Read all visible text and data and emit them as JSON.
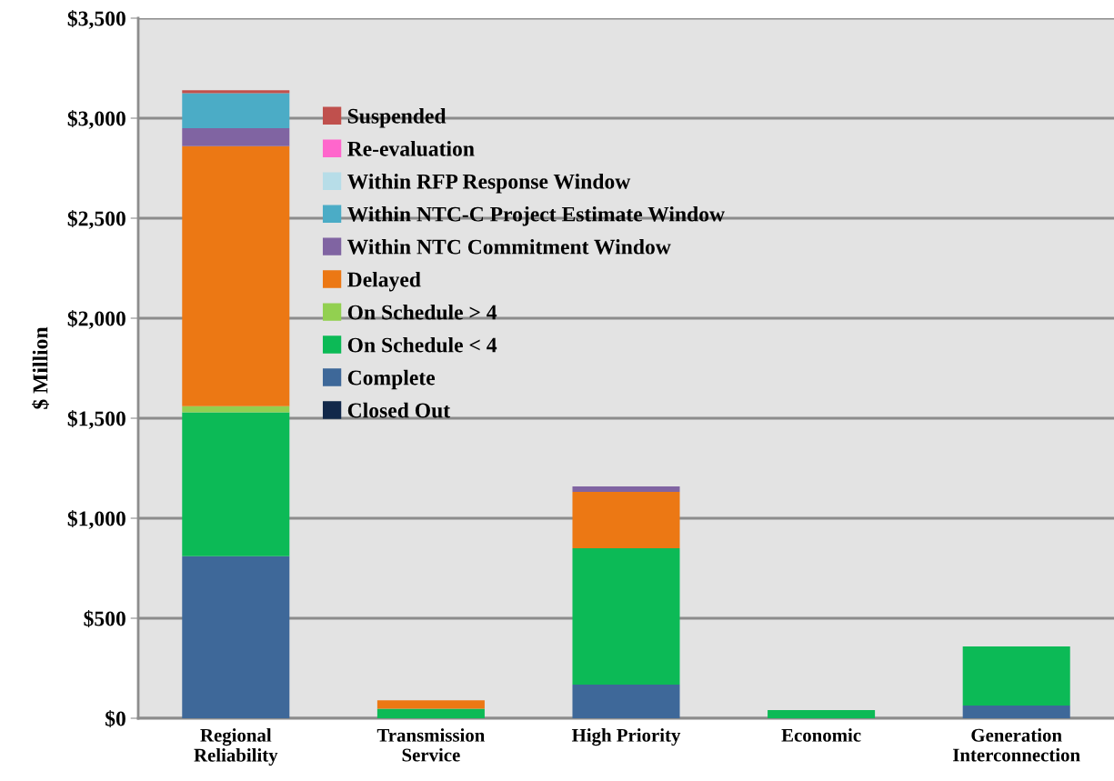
{
  "chart_data": {
    "type": "bar",
    "stacked": true,
    "ylabel": "$ Million",
    "categories": [
      "Regional\nReliability",
      "Transmission\nService",
      "High Priority",
      "Economic",
      "Generation\nInterconnection"
    ],
    "series": [
      {
        "name": "Closed Out",
        "color": "#12284a",
        "values": [
          0,
          0,
          0,
          0,
          0
        ]
      },
      {
        "name": "Complete",
        "color": "#3e6899",
        "values": [
          810,
          0,
          168,
          0,
          64
        ]
      },
      {
        "name": "On Schedule < 4",
        "color": "#0cba56",
        "values": [
          720,
          48,
          682,
          41,
          295
        ]
      },
      {
        "name": "On Schedule > 4",
        "color": "#92d050",
        "values": [
          30,
          0,
          0,
          0,
          0
        ]
      },
      {
        "name": "Delayed",
        "color": "#ec7814",
        "values": [
          1300,
          42,
          282,
          0,
          0
        ]
      },
      {
        "name": "Within NTC Commitment Window",
        "color": "#8064a2",
        "values": [
          90,
          0,
          27,
          0,
          0
        ]
      },
      {
        "name": "Within NTC-C Project Estimate Window",
        "color": "#4bacc6",
        "values": [
          175,
          0,
          0,
          0,
          0
        ]
      },
      {
        "name": "Within RFP Response Window",
        "color": "#b7dde8",
        "values": [
          0,
          0,
          0,
          0,
          0
        ]
      },
      {
        "name": "Re-evaluation",
        "color": "#ff66cc",
        "values": [
          0,
          0,
          0,
          0,
          0
        ]
      },
      {
        "name": "Suspended",
        "color": "#c0504d",
        "values": [
          15,
          0,
          0,
          0,
          0
        ]
      }
    ],
    "ylim": [
      0,
      3500
    ],
    "yticks": [
      {
        "value": 0,
        "label": "$0"
      },
      {
        "value": 500,
        "label": "$500"
      },
      {
        "value": 1000,
        "label": "$1,000"
      },
      {
        "value": 1500,
        "label": "$1,500"
      },
      {
        "value": 2000,
        "label": "$2,000"
      },
      {
        "value": 2500,
        "label": "$2,500"
      },
      {
        "value": 3000,
        "label": "$3,000"
      },
      {
        "value": 3500,
        "label": "$3,500"
      }
    ],
    "grid": "y",
    "legend": "top"
  }
}
